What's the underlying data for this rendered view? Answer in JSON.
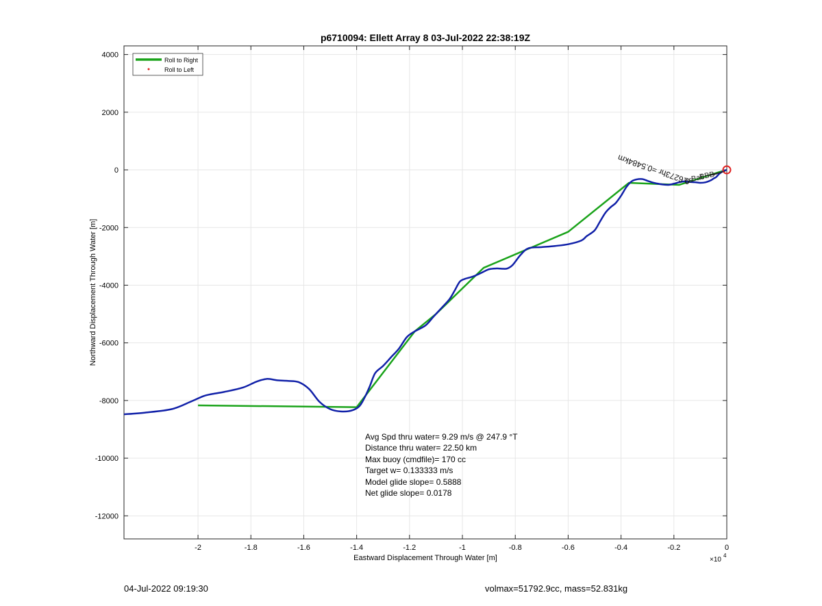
{
  "chart_data": {
    "type": "line",
    "title": "p6710094: Ellett Array 8 03-Jul-2022 22:38:19Z",
    "xlabel": "Eastward Displacement Through Water [m]",
    "ylabel": "Northward Displacement Through Water [m]",
    "x_multiplier_label": "×10",
    "x_multiplier_exp": "4",
    "xlim": [
      -2.28,
      0
    ],
    "ylim": [
      -12800,
      4300
    ],
    "x_ticks": [
      -2,
      -1.8,
      -1.6,
      -1.4,
      -1.2,
      -1,
      -0.8,
      -0.6,
      -0.4,
      -0.2,
      0
    ],
    "x_tick_labels": [
      "-2",
      "-1.8",
      "-1.6",
      "-1.4",
      "-1.2",
      "-1",
      "-0.8",
      "-0.6",
      "-0.4",
      "-0.2",
      "0"
    ],
    "y_ticks": [
      4000,
      2000,
      0,
      -2000,
      -4000,
      -6000,
      -8000,
      -10000,
      -12000
    ],
    "y_tick_labels": [
      "4000",
      "2000",
      "0",
      "-2000",
      "-4000",
      "-6000",
      "-8000",
      "-10000",
      "-12000"
    ],
    "grid": true,
    "legend_position": "top-left",
    "legend": [
      {
        "label": "Roll to Right",
        "color": "#1aa31a",
        "style": "line"
      },
      {
        "label": "Roll to Left",
        "color": "#e02020",
        "style": "dot"
      }
    ],
    "series": [
      {
        "name": "Roll to Right",
        "color": "#1aa31a",
        "x": [
          -2.0,
          -1.4,
          -1.18,
          -1.1,
          -0.92,
          -0.6,
          -0.37,
          -0.18,
          -0.03,
          0
        ],
        "y": [
          -8170,
          -8230,
          -5600,
          -5000,
          -3400,
          -2150,
          -450,
          -520,
          -80,
          0
        ]
      },
      {
        "name": "",
        "color": "#1020a8",
        "x": [
          -2.28,
          -2.2,
          -2.1,
          -2.03,
          -1.98,
          -1.95,
          -1.9,
          -1.83,
          -1.78,
          -1.74,
          -1.7,
          -1.66,
          -1.62,
          -1.58,
          -1.54,
          -1.5,
          -1.46,
          -1.42,
          -1.39,
          -1.37,
          -1.35,
          -1.33,
          -1.3,
          -1.27,
          -1.24,
          -1.21,
          -1.18,
          -1.14,
          -1.11,
          -1.08,
          -1.05,
          -1.03,
          -1.01,
          -0.99,
          -0.96,
          -0.93,
          -0.9,
          -0.87,
          -0.85,
          -0.83,
          -0.81,
          -0.78,
          -0.75,
          -0.7,
          -0.65,
          -0.6,
          -0.55,
          -0.53,
          -0.5,
          -0.48,
          -0.46,
          -0.44,
          -0.42,
          -0.4,
          -0.38,
          -0.36,
          -0.34,
          -0.32,
          -0.3,
          -0.28,
          -0.26,
          -0.24,
          -0.22,
          -0.2,
          -0.18,
          -0.16,
          -0.14,
          -0.12,
          -0.1,
          -0.08,
          -0.06,
          -0.05,
          -0.04,
          -0.03,
          -0.02,
          -0.01,
          0
        ],
        "y": [
          -8480,
          -8420,
          -8300,
          -8050,
          -7850,
          -7780,
          -7700,
          -7550,
          -7350,
          -7250,
          -7300,
          -7320,
          -7360,
          -7600,
          -8050,
          -8300,
          -8380,
          -8350,
          -8200,
          -7900,
          -7500,
          -7050,
          -6800,
          -6500,
          -6200,
          -5800,
          -5600,
          -5400,
          -5100,
          -4800,
          -4500,
          -4200,
          -3880,
          -3780,
          -3700,
          -3580,
          -3450,
          -3420,
          -3430,
          -3420,
          -3300,
          -2950,
          -2720,
          -2680,
          -2640,
          -2580,
          -2450,
          -2300,
          -2100,
          -1800,
          -1500,
          -1300,
          -1150,
          -900,
          -600,
          -400,
          -330,
          -320,
          -380,
          -440,
          -480,
          -510,
          -520,
          -480,
          -430,
          -400,
          -420,
          -430,
          -450,
          -430,
          -360,
          -300,
          -250,
          -150,
          -80,
          -30,
          0
        ]
      }
    ],
    "start_marker": {
      "x": 0,
      "y": 0,
      "color": "#e02020"
    },
    "path_annotation": "0.6273hr =0.5484km",
    "info_lines": [
      "Avg Spd thru water=  9.29 m/s @ 247.9 °T",
      "Distance thru water= 22.50 km",
      "Max buoy (cmdfile)= 170 cc",
      "Target w= 0.133333 m/s",
      "Model glide slope= 0.5888",
      "Net glide slope= 0.0178"
    ]
  },
  "footer": {
    "left": "04-Jul-2022 09:19:30",
    "right": "volmax=51792.9cc, mass=52.831kg"
  }
}
